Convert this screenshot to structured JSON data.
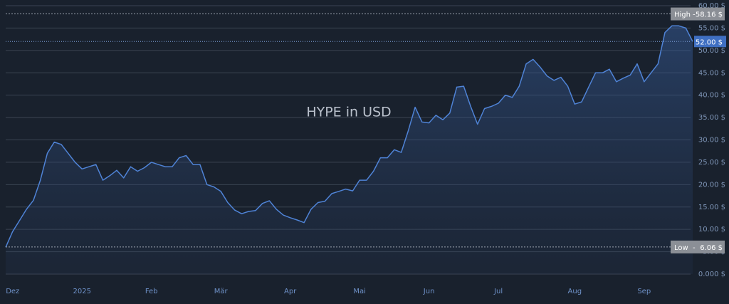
{
  "chart_data": {
    "type": "line",
    "title": "HYPE in USD",
    "categories": [
      null,
      "Dez",
      null,
      null,
      null,
      null,
      null,
      null,
      null,
      null,
      null,
      "2025",
      null,
      null,
      null,
      null,
      null,
      null,
      null,
      null,
      null,
      "Feb",
      null,
      null,
      null,
      null,
      null,
      null,
      null,
      null,
      null,
      "Mär",
      null,
      null,
      null,
      null,
      null,
      null,
      null,
      null,
      null,
      "Apr",
      null,
      null,
      null,
      null,
      null,
      null,
      null,
      null,
      null,
      "Mai",
      null,
      null,
      null,
      null,
      null,
      null,
      null,
      null,
      null,
      "Jun",
      null,
      null,
      null,
      null,
      null,
      null,
      null,
      null,
      null,
      "Jul",
      null,
      null,
      null,
      null,
      null,
      null,
      null,
      null,
      null,
      null,
      "Aug",
      null,
      null,
      null,
      null,
      null,
      null,
      null,
      null,
      null,
      "Sep",
      null,
      null,
      null,
      null,
      null,
      null,
      null
    ],
    "series": [
      {
        "name": "HYPE",
        "color": "#4f83d6",
        "values": [
          6,
          9.5,
          12,
          14.5,
          16.5,
          21,
          27,
          29.5,
          29,
          27,
          25,
          23.5,
          24,
          24.5,
          21,
          22,
          23.2,
          21.5,
          24,
          23,
          23.8,
          25,
          24.5,
          24,
          24,
          26,
          26.5,
          24.5,
          24.5,
          20,
          19.5,
          18.5,
          16,
          14.3,
          13.5,
          14,
          14.2,
          15.8,
          16.4,
          14.5,
          13.2,
          12.6,
          12.1,
          11.5,
          14.5,
          16,
          16.3,
          18,
          18.5,
          19,
          18.6,
          21,
          21,
          23,
          26,
          26,
          27.8,
          27.2,
          32,
          37.3,
          34,
          33.8,
          35.5,
          34.5,
          36,
          41.8,
          42,
          37.5,
          33.5,
          37,
          37.5,
          38.2,
          40,
          39.5,
          42,
          47,
          48,
          46.3,
          44.3,
          43.3,
          44,
          42,
          38,
          38.5,
          41.8,
          45,
          45,
          45.8,
          43,
          43.8,
          44.5,
          47,
          43,
          45,
          47,
          54,
          55.5,
          55.5,
          55,
          52
        ]
      }
    ],
    "ylim": [
      0,
      60
    ],
    "yticks": [
      {
        "value": 0,
        "label": "0.000 $"
      },
      {
        "value": 5,
        "label": "5.00 $"
      },
      {
        "value": 10,
        "label": "10.00 $"
      },
      {
        "value": 15,
        "label": "15.00 $"
      },
      {
        "value": 20,
        "label": "20.00 $"
      },
      {
        "value": 25,
        "label": "25.00 $"
      },
      {
        "value": 30,
        "label": "30.00 $"
      },
      {
        "value": 35,
        "label": "35.00 $"
      },
      {
        "value": 40,
        "label": "40.00 $"
      },
      {
        "value": 45,
        "label": "45.00 $"
      },
      {
        "value": 50,
        "label": "50.00 $"
      },
      {
        "value": 55,
        "label": "55.00 $"
      },
      {
        "value": 60,
        "label": "60.00 $"
      }
    ],
    "grid": true,
    "reference_lines": [
      {
        "name": "High",
        "value": 58.16,
        "value_label": "58.16 $"
      },
      {
        "name": "Low",
        "value": 6.06,
        "value_label": "6.06 $"
      },
      {
        "value": 52,
        "value_label": "52.00 $"
      }
    ]
  }
}
